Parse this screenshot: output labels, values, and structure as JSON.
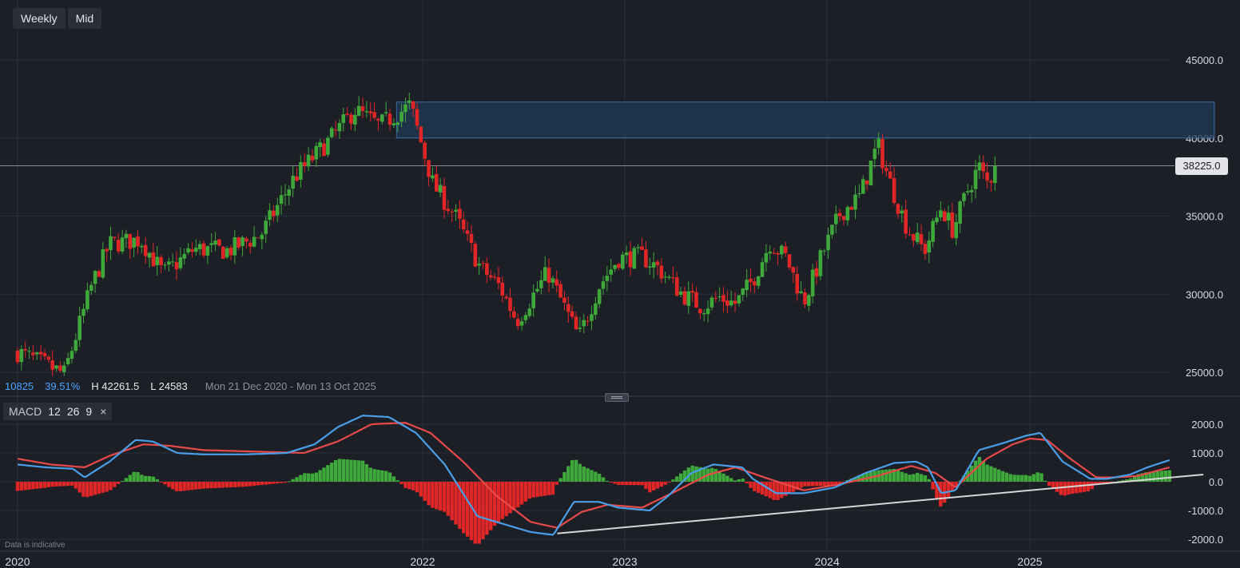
{
  "toolbar": {
    "timeframe": "Weekly",
    "price_type": "Mid"
  },
  "stats": {
    "value": "10825",
    "percent": "39.51%",
    "high": "H 42261.5",
    "low": "L 24583",
    "range": "Mon 21 Dec 2020 - Mon 13 Oct 2025"
  },
  "current_price": "38225.0",
  "macd_legend": {
    "label": "MACD",
    "fast": "12",
    "slow": "26",
    "signal": "9",
    "close": "×"
  },
  "disclaimer": "Data is indicative",
  "colors": {
    "background": "#1c1f26",
    "grid": "#2b2f38",
    "bull": "#3fa83a",
    "bear": "#e02626",
    "macd_line": "#4a9ee8",
    "signal_line": "#e84a4a",
    "zone_fill": "#1f3a55",
    "zone_border": "#3a6ea5",
    "trendline": "#d6d6d6"
  },
  "chart_data": [
    {
      "type": "candlestick",
      "interval": "weekly",
      "x_axis": {
        "labels": [
          "2020",
          "2022",
          "2023",
          "2024",
          "2025"
        ],
        "range": [
          "2020-01-01",
          "2025-08-20"
        ]
      },
      "y_axis": {
        "ticks": [
          "25000.0",
          "30000.0",
          "35000.0",
          "40000.0",
          "45000.0"
        ],
        "range": [
          23500,
          48000
        ]
      },
      "grid": true,
      "current_price": 38225,
      "resistance_zone": {
        "from": [
          40000,
          42300
        ],
        "x_range": [
          "2021-11-15",
          "2025-11-30"
        ]
      },
      "price_path": [
        [
          "2020-01-01",
          26300
        ],
        [
          "2020-03-25",
          24900
        ],
        [
          "2020-05-15",
          30700
        ],
        [
          "2020-06-15",
          33200
        ],
        [
          "2020-08-10",
          33500
        ],
        [
          "2020-09-20",
          31300
        ],
        [
          "2020-11-15",
          32900
        ],
        [
          "2021-01-15",
          32800
        ],
        [
          "2021-03-15",
          33800
        ],
        [
          "2021-05-15",
          37500
        ],
        [
          "2021-07-15",
          39800
        ],
        [
          "2021-09-01",
          41800
        ],
        [
          "2021-10-15",
          40800
        ],
        [
          "2021-12-10",
          42100
        ],
        [
          "2022-01-20",
          37000
        ],
        [
          "2022-03-01",
          35000
        ],
        [
          "2022-04-15",
          31700
        ],
        [
          "2022-05-20",
          30500
        ],
        [
          "2022-06-20",
          28300
        ],
        [
          "2022-08-15",
          31400
        ],
        [
          "2022-10-10",
          27200
        ],
        [
          "2022-11-15",
          30500
        ],
        [
          "2022-12-20",
          32300
        ],
        [
          "2023-02-01",
          32400
        ],
        [
          "2023-03-01",
          31700
        ],
        [
          "2023-04-15",
          30000
        ],
        [
          "2023-05-20",
          29200
        ],
        [
          "2023-06-20",
          29800
        ],
        [
          "2023-07-20",
          29400
        ],
        [
          "2023-08-20",
          30900
        ],
        [
          "2023-09-20",
          33300
        ],
        [
          "2023-10-20",
          32300
        ],
        [
          "2023-11-20",
          29500
        ],
        [
          "2023-12-25",
          32700
        ],
        [
          "2024-01-25",
          35200
        ],
        [
          "2024-03-01",
          36300
        ],
        [
          "2024-04-01",
          39600
        ],
        [
          "2024-04-25",
          37000
        ],
        [
          "2024-05-25",
          34200
        ],
        [
          "2024-06-25",
          32800
        ],
        [
          "2024-07-25",
          35600
        ],
        [
          "2024-08-15",
          34100
        ],
        [
          "2024-09-10",
          36600
        ],
        [
          "2024-10-01",
          38200
        ],
        [
          "2024-10-15",
          37100
        ],
        [
          "2024-11-05",
          38225
        ]
      ]
    },
    {
      "type": "line",
      "indicator": "MACD (12, 26, 9)",
      "y_axis": {
        "ticks": [
          "-2000.0",
          "-1000.0",
          "0.0",
          "1000.0",
          "2000.0"
        ],
        "range": [
          -2250,
          2450
        ]
      },
      "series": [
        {
          "role": "macd",
          "points": [
            [
              "2020-01-01",
              600
            ],
            [
              "2020-02-20",
              500
            ],
            [
              "2020-04-10",
              450
            ],
            [
              "2020-05-01",
              150
            ],
            [
              "2020-06-15",
              700
            ],
            [
              "2020-08-01",
              1450
            ],
            [
              "2020-09-01",
              1400
            ],
            [
              "2020-10-15",
              1000
            ],
            [
              "2020-12-01",
              950
            ],
            [
              "2021-02-15",
              950
            ],
            [
              "2021-05-01",
              1000
            ],
            [
              "2021-06-20",
              1300
            ],
            [
              "2021-08-01",
              1900
            ],
            [
              "2021-09-15",
              2300
            ],
            [
              "2021-11-01",
              2250
            ],
            [
              "2021-12-20",
              1700
            ],
            [
              "2022-02-10",
              600
            ],
            [
              "2022-04-10",
              -1200
            ],
            [
              "2022-06-01",
              -1500
            ],
            [
              "2022-07-15",
              -1750
            ],
            [
              "2022-08-25",
              -1850
            ],
            [
              "2022-10-01",
              -700
            ],
            [
              "2022-11-15",
              -700
            ],
            [
              "2022-12-20",
              -900
            ],
            [
              "2023-02-15",
              -1000
            ],
            [
              "2023-03-20",
              -500
            ],
            [
              "2023-05-01",
              300
            ],
            [
              "2023-06-10",
              600
            ],
            [
              "2023-08-01",
              500
            ],
            [
              "2023-08-20",
              100
            ],
            [
              "2023-10-01",
              -400
            ],
            [
              "2023-11-20",
              -400
            ],
            [
              "2024-01-15",
              -200
            ],
            [
              "2024-03-10",
              300
            ],
            [
              "2024-05-01",
              650
            ],
            [
              "2024-06-10",
              700
            ],
            [
              "2024-07-01",
              500
            ],
            [
              "2024-07-25",
              -400
            ],
            [
              "2024-08-20",
              -300
            ],
            [
              "2024-10-01",
              1100
            ],
            [
              "2024-11-15",
              1350
            ],
            [
              "2024-12-25",
              1600
            ],
            [
              "2025-01-20",
              1700
            ],
            [
              "2025-03-01",
              700
            ],
            [
              "2025-04-20",
              100
            ],
            [
              "2025-05-20",
              100
            ],
            [
              "2025-07-01",
              250
            ],
            [
              "2025-08-01",
              500
            ],
            [
              "2025-09-10",
              750
            ]
          ]
        },
        {
          "role": "signal",
          "points": [
            [
              "2020-01-01",
              800
            ],
            [
              "2020-03-01",
              600
            ],
            [
              "2020-05-01",
              500
            ],
            [
              "2020-06-15",
              900
            ],
            [
              "2020-08-15",
              1300
            ],
            [
              "2020-10-01",
              1250
            ],
            [
              "2020-12-01",
              1100
            ],
            [
              "2021-03-01",
              1050
            ],
            [
              "2021-06-01",
              1000
            ],
            [
              "2021-08-01",
              1400
            ],
            [
              "2021-10-01",
              2000
            ],
            [
              "2021-12-01",
              2050
            ],
            [
              "2022-01-15",
              1700
            ],
            [
              "2022-03-15",
              700
            ],
            [
              "2022-05-15",
              -500
            ],
            [
              "2022-07-15",
              -1400
            ],
            [
              "2022-09-01",
              -1600
            ],
            [
              "2022-10-15",
              -1050
            ],
            [
              "2022-12-01",
              -800
            ],
            [
              "2023-02-01",
              -900
            ],
            [
              "2023-04-01",
              -350
            ],
            [
              "2023-06-01",
              250
            ],
            [
              "2023-07-20",
              500
            ],
            [
              "2023-09-10",
              150
            ],
            [
              "2023-11-20",
              -300
            ],
            [
              "2024-01-20",
              -100
            ],
            [
              "2024-04-01",
              200
            ],
            [
              "2024-06-01",
              550
            ],
            [
              "2024-07-15",
              300
            ],
            [
              "2024-08-20",
              -200
            ],
            [
              "2024-10-15",
              800
            ],
            [
              "2024-12-01",
              1300
            ],
            [
              "2025-01-01",
              1500
            ],
            [
              "2025-02-01",
              1450
            ],
            [
              "2025-03-15",
              800
            ],
            [
              "2025-05-01",
              150
            ],
            [
              "2025-06-01",
              150
            ],
            [
              "2025-07-15",
              200
            ],
            [
              "2025-09-10",
              500
            ]
          ]
        }
      ],
      "trendline": {
        "from": [
          "2022-09-01",
          -1800
        ],
        "to": [
          "2025-11-10",
          250
        ]
      }
    }
  ]
}
